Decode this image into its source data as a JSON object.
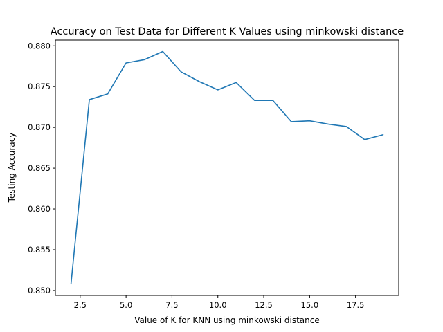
{
  "chart_data": {
    "type": "line",
    "title": "Accuracy on Test Data for Different K Values using minkowski distance",
    "xlabel": "Value of K for KNN using minkowski distance",
    "ylabel": "Testing Accuracy",
    "xlim": [
      1.15,
      19.85
    ],
    "ylim": [
      0.8494,
      0.8807
    ],
    "grid": false,
    "legend": "none",
    "x_ticks": [
      2.5,
      5.0,
      7.5,
      10.0,
      12.5,
      15.0,
      17.5
    ],
    "x_tick_labels": [
      "2.5",
      "5.0",
      "7.5",
      "10.0",
      "12.5",
      "15.0",
      "17.5"
    ],
    "y_ticks": [
      0.85,
      0.855,
      0.86,
      0.865,
      0.87,
      0.875,
      0.88
    ],
    "y_tick_labels": [
      "0.850",
      "0.855",
      "0.860",
      "0.865",
      "0.870",
      "0.875",
      "0.880"
    ],
    "series": [
      {
        "color": "#1f77b4",
        "x": [
          2,
          3,
          4,
          5,
          6,
          7,
          8,
          9,
          10,
          11,
          12,
          13,
          14,
          15,
          16,
          17,
          18,
          19
        ],
        "values": [
          0.8508,
          0.8734,
          0.8741,
          0.8779,
          0.8783,
          0.8793,
          0.8768,
          0.8756,
          0.8746,
          0.8755,
          0.8733,
          0.8733,
          0.8707,
          0.8708,
          0.8704,
          0.8701,
          0.8685,
          0.8691
        ]
      }
    ]
  }
}
